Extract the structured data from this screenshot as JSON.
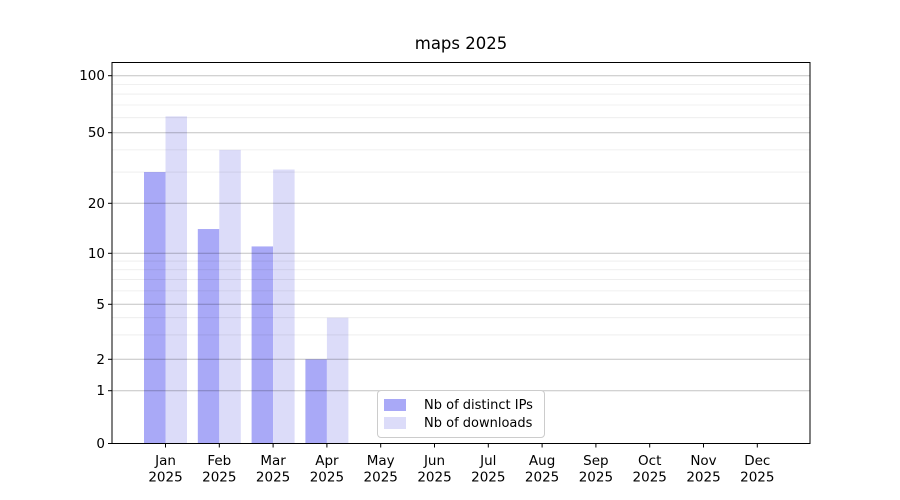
{
  "chart_data": {
    "type": "bar",
    "title": "maps 2025",
    "xlabel": "",
    "ylabel": "",
    "yscale": "log-like (linear between 0 and 1, logarithmic above 1)",
    "ylim": [
      0,
      117
    ],
    "grid": true,
    "legend_position": "lower center inside plot",
    "categories": [
      "Jan",
      "Feb",
      "Mar",
      "Apr",
      "May",
      "Jun",
      "Jul",
      "Aug",
      "Sep",
      "Oct",
      "Nov",
      "Dec"
    ],
    "year_label": "2025",
    "yticks": [
      0,
      1,
      2,
      5,
      10,
      20,
      50,
      100
    ],
    "minor_gridlines": [
      3,
      4,
      6,
      7,
      8,
      9,
      30,
      40,
      60,
      70,
      80,
      90
    ],
    "series": [
      {
        "name": "Nb of distinct IPs",
        "color": "#a9a9f7",
        "values": [
          30,
          14,
          11,
          2,
          0,
          0,
          0,
          0,
          0,
          0,
          0,
          0
        ]
      },
      {
        "name": "Nb of downloads",
        "color": "#dcdcf9",
        "values": [
          61,
          40,
          31,
          4,
          0,
          0,
          0,
          0,
          0,
          0,
          0,
          0
        ]
      }
    ],
    "colors": {
      "spine": "#000000",
      "major_grid": "rgba(0,0,0,0.24)",
      "minor_grid": "rgba(0,0,0,0.08)",
      "legend_border": "#cccccc",
      "text": "#000000"
    }
  }
}
